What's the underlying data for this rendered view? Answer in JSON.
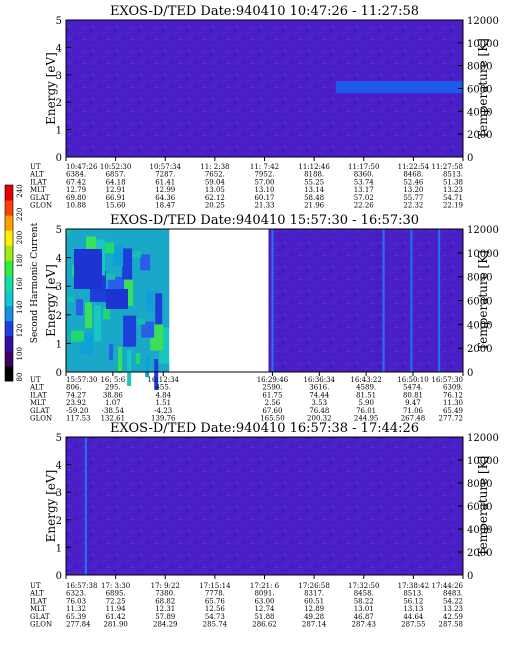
{
  "colors": {
    "background": "#4a1fc8",
    "gap": "#ffffff",
    "axis": "#000000",
    "colorbar": [
      "#000000",
      "#400060",
      "#3010a0",
      "#1f40e0",
      "#1890e0",
      "#10c8d0",
      "#10e0a0",
      "#30ee40",
      "#a0ee10",
      "#ffee00",
      "#ffa000",
      "#ff4000",
      "#e00000"
    ]
  },
  "colorbar": {
    "label": "Second Harmonic Current",
    "ticks": [
      "80",
      "100",
      "120",
      "140",
      "160",
      "180",
      "200",
      "220",
      "240"
    ]
  },
  "chart_data": [
    {
      "type": "heatmap",
      "title": "EXOS-D/TED   Date:940410   10:47:26 - 11:27:58",
      "ylabel": "Energy [eV]",
      "y2label": "Temperature [K]",
      "ylim": [
        0,
        5
      ],
      "y2lim": [
        0,
        12000
      ],
      "yticks": [
        "0",
        "1",
        "2",
        "3",
        "4",
        "5"
      ],
      "y2ticks": [
        "0",
        "2000",
        "4000",
        "6000",
        "8000",
        "10000",
        "12000"
      ],
      "gaps": [],
      "features": [
        {
          "x_from": 0.68,
          "x_to": 1.0,
          "y_center": 2.55,
          "y_halfwidth": 0.22,
          "color": "#1e5ae8"
        }
      ],
      "streaks": [],
      "table": {
        "row_labels": [
          "UT",
          "ALT",
          "ILAT",
          "MLT",
          "GLAT",
          "GLON"
        ],
        "columns": [
          [
            "10:47:26",
            "6384.",
            "67.42",
            "12.79",
            "69.80",
            "10.88"
          ],
          [
            "10:52:30",
            "6857.",
            "64.18",
            "12.91",
            "66.91",
            "15.60"
          ],
          [
            "10:57:34",
            "7287.",
            "61.41",
            "12.99",
            "64.36",
            "18.47"
          ],
          [
            "11: 2:38",
            "7652.",
            "59.04",
            "13.05",
            "62.12",
            "20.25"
          ],
          [
            "11: 7:42",
            "7952.",
            "57.00",
            "13.10",
            "60.17",
            "21.33"
          ],
          [
            "11:12:46",
            "8188.",
            "55.25",
            "13.14",
            "58.48",
            "21.96"
          ],
          [
            "11:17:50",
            "8360.",
            "53.74",
            "13.17",
            "57.02",
            "22.26"
          ],
          [
            "11:22:54",
            "8468.",
            "52.46",
            "13.20",
            "55.77",
            "22.32"
          ],
          [
            "11:27:58",
            "8513.",
            "51.38",
            "13.23",
            "54.71",
            "22.19"
          ]
        ]
      }
    },
    {
      "type": "heatmap",
      "title": "EXOS-D/TED   Date:940410   15:57:30 - 16:57:30",
      "ylabel": "Energy [eV]",
      "y2label": "Temperature [K]",
      "ylim": [
        0,
        5
      ],
      "y2lim": [
        0,
        12000
      ],
      "yticks": [
        "0",
        "1",
        "2",
        "3",
        "4",
        "5"
      ],
      "y2ticks": [
        "0",
        "2000",
        "4000",
        "6000",
        "8000",
        "10000",
        "12000"
      ],
      "gaps": [
        {
          "x_from": 0.26,
          "x_to": 0.51
        }
      ],
      "features": [
        {
          "x_from": 0.0,
          "x_to": 0.26,
          "kind": "turbulent"
        }
      ],
      "streaks": [
        0.52,
        0.8,
        0.87,
        0.94
      ],
      "table": {
        "row_labels": [
          "UT",
          "ALT",
          "ILAT",
          "MLT",
          "GLAT",
          "GLON"
        ],
        "columns": [
          [
            "15:57:30",
            "806.",
            "74.27",
            "23.92",
            "-59.20",
            "117.53"
          ],
          [
            "16: 5:6",
            "295.",
            "38.86",
            "1.07",
            "-38.54",
            "132.61"
          ],
          [
            "16:12:34",
            "455.",
            "4.84",
            "1.51",
            "-4.23",
            "139.76"
          ],
          [
            "16:29:46",
            "2590.",
            "61.75",
            "2.56",
            "67.60",
            "165.50"
          ],
          [
            "16:36:34",
            "3616.",
            "74.44",
            "3.53",
            "76.48",
            "200.32"
          ],
          [
            "16:43:22",
            "4589.",
            "81.51",
            "5.90",
            "76.01",
            "244.95"
          ],
          [
            "16:50:10",
            "5474.",
            "80.81",
            "9.47",
            "71.06",
            "267.48"
          ],
          [
            "16:57:30",
            "6309.",
            "76.12",
            "11.30",
            "65.49",
            "277.72"
          ]
        ],
        "positions": [
          0.0,
          0.118,
          0.245,
          0.52,
          0.638,
          0.756,
          0.874,
          1.0
        ]
      }
    },
    {
      "type": "heatmap",
      "title": "EXOS-D/TED   Date:940410   16:57:38 - 17:44:26",
      "ylabel": "Energy [eV]",
      "y2label": "Temperature [K]",
      "ylim": [
        0,
        5
      ],
      "y2lim": [
        0,
        12000
      ],
      "yticks": [
        "0",
        "1",
        "2",
        "3",
        "4",
        "5"
      ],
      "y2ticks": [
        "0",
        "2000",
        "4000",
        "6000",
        "8000",
        "10000",
        "12000"
      ],
      "gaps": [],
      "features": [],
      "streaks": [
        0.05
      ],
      "table": {
        "row_labels": [
          "UT",
          "ALT",
          "ILAT",
          "MLT",
          "GLAT",
          "GLON"
        ],
        "columns": [
          [
            "16:57:38",
            "6323.",
            "76.03",
            "11.32",
            "65.39",
            "277.84"
          ],
          [
            "17: 3:30",
            "6895.",
            "72.25",
            "11.94",
            "61.42",
            "281.90"
          ],
          [
            "17: 9:22",
            "7380.",
            "68.82",
            "12.31",
            "57.89",
            "284.29"
          ],
          [
            "17:15:14",
            "7778.",
            "65.76",
            "12.56",
            "54.73",
            "285.74"
          ],
          [
            "17:21: 6",
            "8091.",
            "63.00",
            "12.74",
            "51.88",
            "286.62"
          ],
          [
            "17:26:58",
            "8317.",
            "60.51",
            "12.89",
            "49.28",
            "287.14"
          ],
          [
            "17:32:50",
            "8458.",
            "58.22",
            "13.01",
            "46.87",
            "287.43"
          ],
          [
            "17:38:42",
            "8513.",
            "56.12",
            "13.13",
            "44.64",
            "287.55"
          ],
          [
            "17:44:26",
            "8483.",
            "54.22",
            "13.23",
            "42.59",
            "287.58"
          ]
        ]
      }
    }
  ]
}
